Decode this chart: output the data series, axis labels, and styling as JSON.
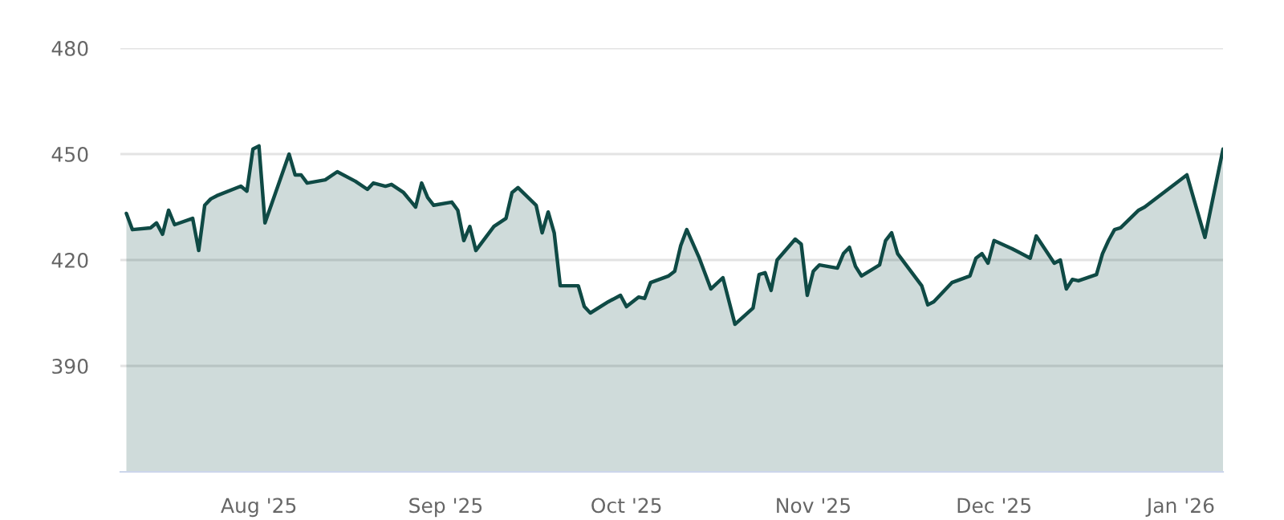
{
  "chart_data": {
    "type": "area",
    "x": [
      "2025-07-10",
      "2025-07-11",
      "2025-07-14",
      "2025-07-15",
      "2025-07-16",
      "2025-07-17",
      "2025-07-18",
      "2025-07-21",
      "2025-07-22",
      "2025-07-23",
      "2025-07-24",
      "2025-07-25",
      "2025-07-29",
      "2025-07-30",
      "2025-07-31",
      "2025-08-01",
      "2025-08-02",
      "2025-08-06",
      "2025-08-07",
      "2025-08-08",
      "2025-08-09",
      "2025-08-12",
      "2025-08-14",
      "2025-08-17",
      "2025-08-19",
      "2025-08-20",
      "2025-08-22",
      "2025-08-23",
      "2025-08-25",
      "2025-08-27",
      "2025-08-28",
      "2025-08-29",
      "2025-08-30",
      "2025-09-02",
      "2025-09-03",
      "2025-09-04",
      "2025-09-05",
      "2025-09-06",
      "2025-09-09",
      "2025-09-11",
      "2025-09-12",
      "2025-09-13",
      "2025-09-16",
      "2025-09-17",
      "2025-09-18",
      "2025-09-19",
      "2025-09-20",
      "2025-09-23",
      "2025-09-24",
      "2025-09-25",
      "2025-09-28",
      "2025-09-30",
      "2025-10-01",
      "2025-10-03",
      "2025-10-04",
      "2025-10-05",
      "2025-10-08",
      "2025-10-09",
      "2025-10-10",
      "2025-10-11",
      "2025-10-13",
      "2025-10-15",
      "2025-10-17",
      "2025-10-19",
      "2025-10-22",
      "2025-10-23",
      "2025-10-24",
      "2025-10-25",
      "2025-10-26",
      "2025-10-29",
      "2025-10-30",
      "2025-10-31",
      "2025-11-01",
      "2025-11-02",
      "2025-11-05",
      "2025-11-06",
      "2025-11-07",
      "2025-11-08",
      "2025-11-09",
      "2025-11-12",
      "2025-11-13",
      "2025-11-14",
      "2025-11-15",
      "2025-11-19",
      "2025-11-20",
      "2025-11-21",
      "2025-11-24",
      "2025-11-27",
      "2025-11-28",
      "2025-11-29",
      "2025-11-30",
      "2025-12-01",
      "2025-12-04",
      "2025-12-07",
      "2025-12-08",
      "2025-12-11",
      "2025-12-12",
      "2025-12-13",
      "2025-12-14",
      "2025-12-15",
      "2025-12-18",
      "2025-12-19",
      "2025-12-20",
      "2025-12-21",
      "2025-12-22",
      "2025-12-25",
      "2025-12-26",
      "2026-01-02",
      "2026-01-05",
      "2026-01-08"
    ],
    "series": [
      {
        "color": "#0f4a45",
        "values": [
          433.2,
          428.6,
          429.1,
          430.5,
          427.3,
          434.1,
          430.0,
          431.8,
          422.7,
          435.5,
          437.3,
          438.2,
          440.9,
          439.5,
          451.4,
          452.3,
          430.5,
          450.0,
          444.1,
          444.1,
          441.8,
          442.7,
          445.0,
          442.3,
          440.0,
          441.8,
          440.9,
          441.4,
          439.1,
          435.0,
          441.8,
          437.7,
          435.5,
          436.4,
          434.1,
          425.5,
          429.5,
          422.7,
          429.5,
          431.8,
          439.1,
          440.5,
          435.5,
          427.7,
          433.6,
          427.7,
          412.7,
          412.7,
          406.8,
          405.0,
          408.2,
          410.0,
          406.8,
          409.5,
          409.1,
          413.6,
          415.5,
          416.8,
          424.1,
          428.6,
          420.9,
          411.8,
          415.0,
          401.8,
          406.4,
          415.9,
          416.4,
          411.4,
          420.0,
          425.9,
          424.5,
          410.0,
          416.8,
          418.6,
          417.7,
          421.8,
          423.6,
          418.2,
          415.5,
          418.6,
          425.5,
          427.7,
          421.8,
          412.7,
          407.3,
          408.2,
          413.6,
          415.5,
          420.5,
          421.8,
          419.1,
          425.5,
          423.2,
          420.5,
          426.8,
          419.1,
          420.0,
          411.8,
          414.5,
          414.1,
          415.9,
          421.8,
          425.5,
          428.6,
          429.1,
          434.1,
          435.0,
          444.1,
          426.4,
          451.4
        ]
      }
    ],
    "xlim": [
      "2025-07-09",
      "2026-01-08"
    ],
    "xticks": [
      {
        "value": "2025-08-01",
        "label": "Aug '25"
      },
      {
        "value": "2025-09-01",
        "label": "Sep '25"
      },
      {
        "value": "2025-10-01",
        "label": "Oct '25"
      },
      {
        "value": "2025-11-01",
        "label": "Nov '25"
      },
      {
        "value": "2025-12-01",
        "label": "Dec '25"
      },
      {
        "value": "2026-01-01",
        "label": "Jan '26"
      }
    ],
    "ylim": [
      360,
      480
    ],
    "yticks": [
      390,
      420,
      450,
      480
    ],
    "grid": "y",
    "legend": false
  }
}
